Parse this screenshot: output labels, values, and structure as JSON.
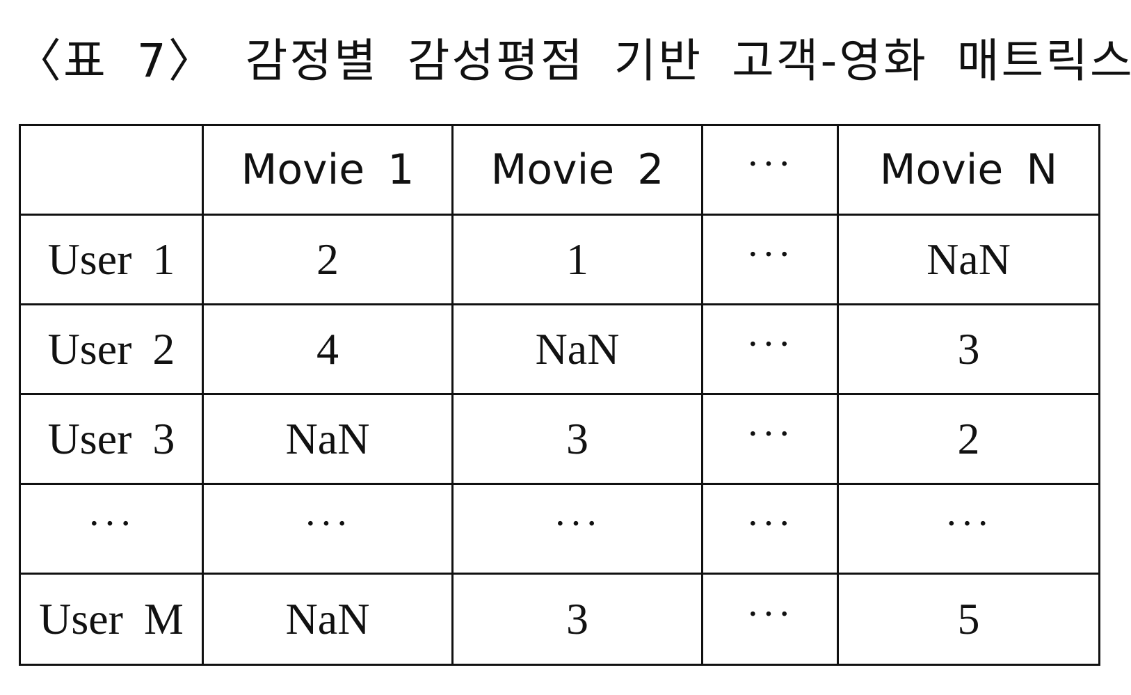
{
  "caption": "〈표 7〉 감정별 감성평점 기반 고객-영화 매트릭스",
  "table": {
    "header": [
      "",
      "Movie 1",
      "Movie 2",
      "···",
      "Movie N"
    ],
    "rows": [
      [
        "User 1",
        "2",
        "1",
        "···",
        "NaN"
      ],
      [
        "User 2",
        "4",
        "NaN",
        "···",
        "3"
      ],
      [
        "User 3",
        "NaN",
        "3",
        "···",
        "2"
      ],
      [
        "···",
        "···",
        "···",
        "···",
        "···"
      ],
      [
        "User M",
        "NaN",
        "3",
        "···",
        "5"
      ]
    ]
  }
}
